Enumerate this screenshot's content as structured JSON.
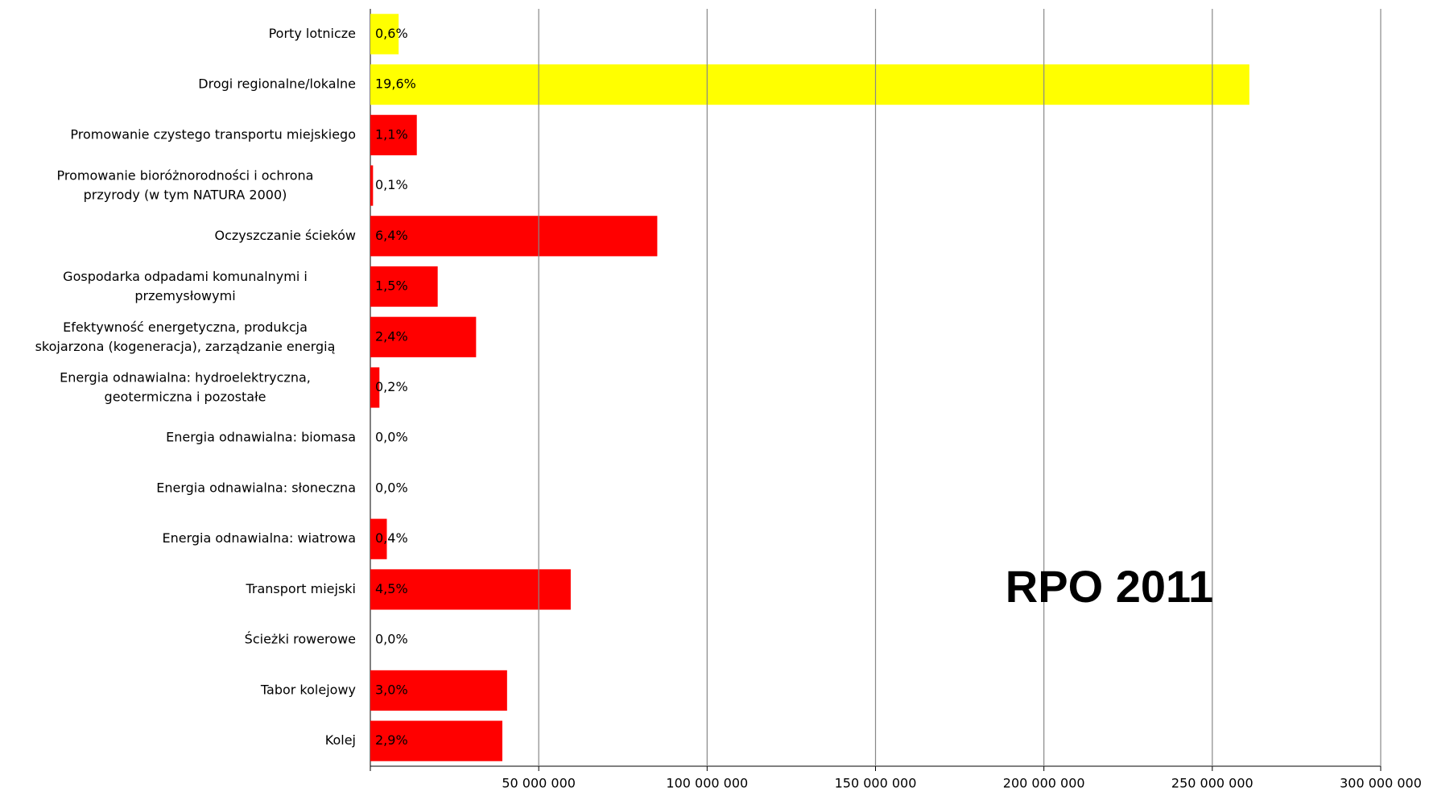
{
  "chart_data": {
    "type": "barh",
    "categories": [
      "Porty lotnicze",
      "Drogi regionalne/lokalne",
      "Promowanie czystego transportu miejskiego",
      "Promowanie bioróżnorodności i ochrona\nprzyrody (w tym NATURA 2000)",
      "Oczyszczanie ścieków",
      "Gospodarka odpadami komunalnymi i\nprzemysłowymi",
      "Efektywność energetyczna, produkcja\nskojarzona (kogeneracja), zarządzanie energią",
      "Energia odnawialna: hydroelektryczna,\ngeotermiczna i pozostałe",
      "Energia odnawialna: biomasa",
      "Energia odnawialna: słoneczna",
      "Energia odnawialna: wiatrowa",
      "Transport miejski",
      "Ścieżki rowerowe",
      "Tabor kolejowy",
      "Kolej"
    ],
    "values": [
      8400000,
      261000000,
      13800000,
      800000,
      85200000,
      20000000,
      31400000,
      2700000,
      0,
      0,
      4900000,
      59500000,
      0,
      40600000,
      39200000
    ],
    "bar_labels": [
      "0,6%",
      "19,6%",
      "1,1%",
      "0,1%",
      "6,4%",
      "1,5%",
      "2,4%",
      "0,2%",
      "0,0%",
      "0,0%",
      "0,4%",
      "4,5%",
      "0,0%",
      "3,0%",
      "2,9%"
    ],
    "colors": [
      "#ffff00",
      "#ffff00",
      "#ff0000",
      "#ff0000",
      "#ff0000",
      "#ff0000",
      "#ff0000",
      "#ff0000",
      "#ff0000",
      "#ff0000",
      "#ff0000",
      "#ff0000",
      "#ff0000",
      "#ff0000",
      "#ff0000"
    ],
    "xlim": [
      0,
      300000000
    ],
    "xticks": [
      {
        "value": 50000000,
        "label": "50 000 000"
      },
      {
        "value": 100000000,
        "label": "100 000 000"
      },
      {
        "value": 150000000,
        "label": "150 000 000"
      },
      {
        "value": 200000000,
        "label": "200 000 000"
      },
      {
        "value": 250000000,
        "label": "250 000 000"
      },
      {
        "value": 300000000,
        "label": "300 000 000"
      }
    ],
    "grid": true,
    "annotation": "RPO 2011"
  }
}
